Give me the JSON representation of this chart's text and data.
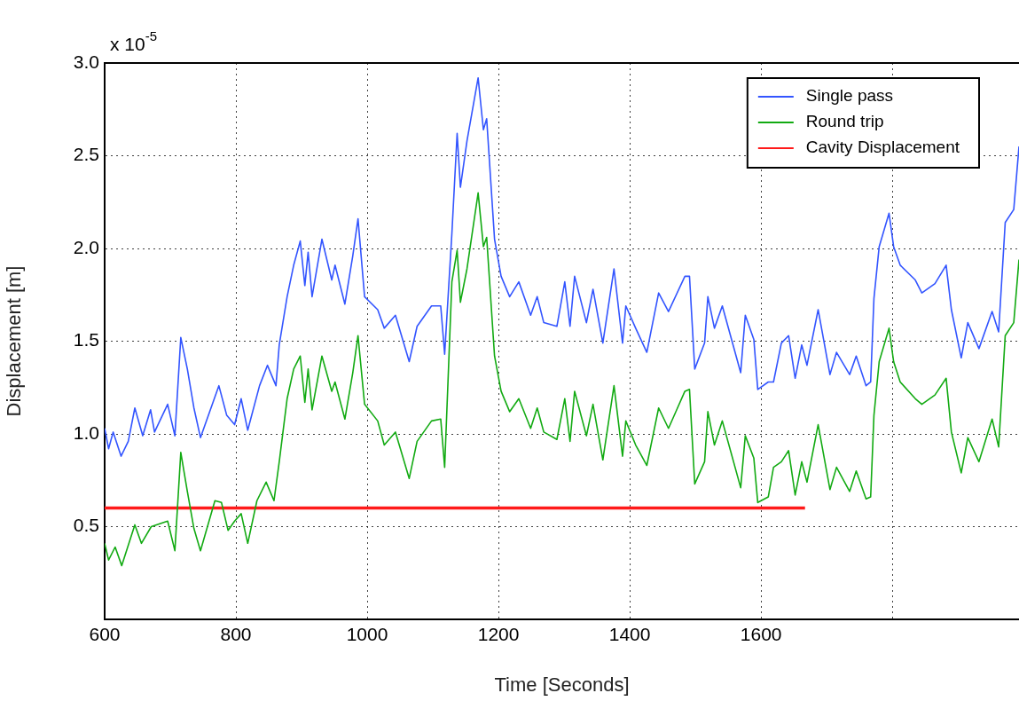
{
  "chart_data": {
    "type": "line",
    "xlabel": "Time [Seconds]",
    "ylabel": "Displacement [m]",
    "annotations": [
      "x 10$^{-5}$"
    ],
    "xlim": [
      600,
      1993
    ],
    "xticks": [
      600,
      800,
      1000,
      1200,
      1400,
      1600,
      {
        "value": 1800,
        "label": null
      }
    ],
    "ylim": [
      0,
      3
    ],
    "yticks": [
      {
        "value": 0.5,
        "label": "0.5"
      },
      {
        "value": 1,
        "label": "1.0"
      },
      {
        "value": 1.5,
        "label": "1.5"
      },
      {
        "value": 2,
        "label": "2.0"
      },
      {
        "value": 2.5,
        "label": "2.5"
      },
      {
        "value": 3,
        "label": "3.0"
      }
    ],
    "grid": true,
    "legend": "top right",
    "marker": "none",
    "line_style": "solid",
    "series": [
      {
        "name": "Single pass",
        "color": "#3355ff",
        "x": [
          600,
          606,
          613,
          625,
          636,
          646,
          658,
          670,
          676,
          696,
          707,
          716,
          726,
          736,
          746,
          774,
          786,
          798,
          808,
          818,
          836,
          848,
          861,
          866,
          878,
          888,
          898,
          905,
          910,
          916,
          931,
          946,
          951,
          966,
          978,
          986,
          996,
          1016,
          1026,
          1043,
          1064,
          1076,
          1098,
          1112,
          1118,
          1129,
          1137,
          1142,
          1152,
          1169,
          1177,
          1182,
          1194,
          1204,
          1217,
          1231,
          1249,
          1259,
          1269,
          1289,
          1301,
          1309,
          1316,
          1334,
          1344,
          1359,
          1376,
          1389,
          1394,
          1409,
          1426,
          1444,
          1459,
          1484,
          1491,
          1499,
          1514,
          1519,
          1529,
          1541,
          1569,
          1576,
          1589,
          1595,
          1611,
          1619,
          1631,
          1642,
          1652,
          1662,
          1670,
          1687,
          1705,
          1715,
          1735,
          1745,
          1760,
          1767,
          1772,
          1780,
          1795,
          1802,
          1812,
          1835,
          1845,
          1865,
          1882,
          1890,
          1905,
          1915,
          1932,
          1952,
          1962,
          1972,
          1985,
          1993
        ],
        "values": [
          1.03,
          0.92,
          1.01,
          0.88,
          0.96,
          1.14,
          0.99,
          1.13,
          1.01,
          1.16,
          0.99,
          1.52,
          1.35,
          1.14,
          0.98,
          1.26,
          1.1,
          1.05,
          1.19,
          1.02,
          1.26,
          1.37,
          1.26,
          1.48,
          1.74,
          1.91,
          2.04,
          1.8,
          1.98,
          1.74,
          2.05,
          1.83,
          1.91,
          1.7,
          1.96,
          2.16,
          1.74,
          1.67,
          1.57,
          1.64,
          1.39,
          1.58,
          1.69,
          1.69,
          1.43,
          2.08,
          2.62,
          2.33,
          2.58,
          2.92,
          2.64,
          2.7,
          2.05,
          1.85,
          1.74,
          1.82,
          1.64,
          1.74,
          1.6,
          1.58,
          1.82,
          1.58,
          1.85,
          1.6,
          1.78,
          1.49,
          1.89,
          1.49,
          1.69,
          1.57,
          1.44,
          1.76,
          1.66,
          1.85,
          1.85,
          1.35,
          1.49,
          1.74,
          1.57,
          1.69,
          1.33,
          1.64,
          1.51,
          1.24,
          1.28,
          1.28,
          1.49,
          1.53,
          1.3,
          1.48,
          1.37,
          1.67,
          1.32,
          1.44,
          1.32,
          1.42,
          1.26,
          1.28,
          1.73,
          2.01,
          2.19,
          2.01,
          1.91,
          1.83,
          1.76,
          1.81,
          1.91,
          1.67,
          1.41,
          1.6,
          1.46,
          1.66,
          1.55,
          2.14,
          2.21,
          2.55
        ]
      },
      {
        "name": "Round trip",
        "color": "#12aa12",
        "x": [
          600,
          606,
          616,
          626,
          646,
          656,
          671,
          696,
          707,
          716,
          726,
          736,
          746,
          768,
          778,
          788,
          798,
          808,
          818,
          832,
          846,
          858,
          866,
          878,
          888,
          898,
          905,
          910,
          916,
          931,
          946,
          951,
          966,
          978,
          986,
          996,
          1016,
          1026,
          1043,
          1064,
          1076,
          1098,
          1112,
          1118,
          1129,
          1137,
          1142,
          1152,
          1169,
          1177,
          1182,
          1194,
          1204,
          1217,
          1231,
          1249,
          1259,
          1269,
          1289,
          1301,
          1309,
          1316,
          1334,
          1344,
          1359,
          1376,
          1389,
          1394,
          1409,
          1426,
          1444,
          1459,
          1484,
          1491,
          1499,
          1514,
          1519,
          1529,
          1541,
          1569,
          1576,
          1589,
          1595,
          1611,
          1619,
          1631,
          1642,
          1652,
          1662,
          1670,
          1687,
          1705,
          1715,
          1735,
          1745,
          1760,
          1767,
          1772,
          1780,
          1795,
          1802,
          1812,
          1835,
          1845,
          1865,
          1882,
          1890,
          1905,
          1915,
          1932,
          1952,
          1962,
          1972,
          1985,
          1993
        ],
        "values": [
          0.41,
          0.32,
          0.39,
          0.29,
          0.51,
          0.41,
          0.5,
          0.53,
          0.37,
          0.9,
          0.69,
          0.49,
          0.37,
          0.64,
          0.63,
          0.48,
          0.53,
          0.57,
          0.41,
          0.64,
          0.74,
          0.64,
          0.85,
          1.19,
          1.35,
          1.42,
          1.17,
          1.35,
          1.13,
          1.42,
          1.23,
          1.28,
          1.08,
          1.33,
          1.53,
          1.16,
          1.07,
          0.94,
          1.01,
          0.76,
          0.96,
          1.07,
          1.08,
          0.82,
          1.82,
          1.99,
          1.71,
          1.89,
          2.3,
          2.01,
          2.06,
          1.42,
          1.23,
          1.12,
          1.19,
          1.03,
          1.14,
          1.01,
          0.97,
          1.19,
          0.96,
          1.23,
          0.99,
          1.16,
          0.86,
          1.26,
          0.88,
          1.07,
          0.94,
          0.83,
          1.14,
          1.03,
          1.23,
          1.24,
          0.73,
          0.85,
          1.12,
          0.94,
          1.07,
          0.71,
          0.99,
          0.87,
          0.63,
          0.66,
          0.82,
          0.85,
          0.91,
          0.67,
          0.85,
          0.74,
          1.05,
          0.7,
          0.82,
          0.69,
          0.8,
          0.65,
          0.66,
          1.1,
          1.39,
          1.57,
          1.39,
          1.28,
          1.19,
          1.16,
          1.21,
          1.3,
          1.01,
          0.79,
          0.98,
          0.85,
          1.08,
          0.93,
          1.53,
          1.6,
          1.94
        ]
      },
      {
        "name": "Cavity Displacement",
        "color": "#ff1a1a",
        "x": [
          600,
          1667
        ],
        "values": [
          0.6,
          0.6
        ]
      }
    ]
  }
}
